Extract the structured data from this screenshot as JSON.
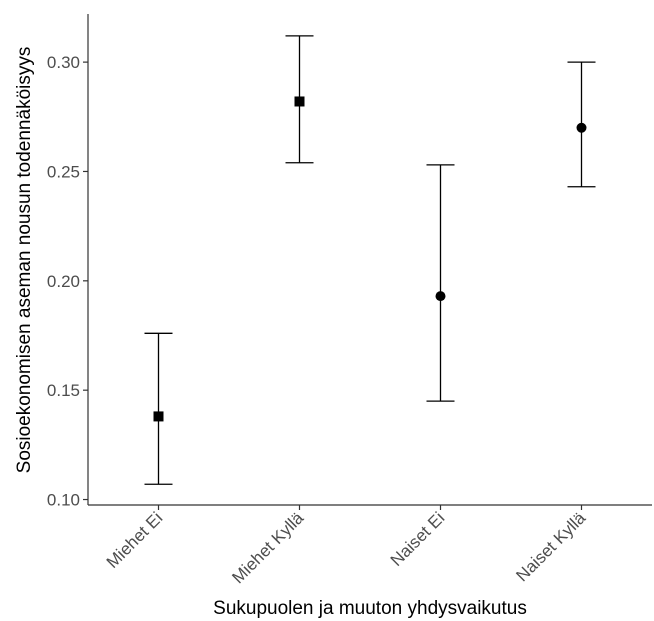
{
  "chart_data": {
    "type": "scatter",
    "title": "",
    "xlabel": "Sukupuolen ja muuton yhdysvaikutus",
    "ylabel": "Sosioekonomisen aseman nousun todennäköisyys",
    "categories": [
      "Miehet Ei",
      "Miehet Kyllä",
      "Naiset Ei",
      "Naiset Kyllä"
    ],
    "points": [
      {
        "category": "Miehet Ei",
        "value": 0.138,
        "lower": 0.107,
        "upper": 0.176,
        "marker": "square"
      },
      {
        "category": "Miehet Kyllä",
        "value": 0.282,
        "lower": 0.254,
        "upper": 0.312,
        "marker": "square"
      },
      {
        "category": "Naiset Ei",
        "value": 0.193,
        "lower": 0.145,
        "upper": 0.253,
        "marker": "circle"
      },
      {
        "category": "Naiset Kyllä",
        "value": 0.27,
        "lower": 0.243,
        "upper": 0.3,
        "marker": "circle"
      }
    ],
    "yticks": [
      "0.10",
      "0.15",
      "0.20",
      "0.25",
      "0.30"
    ],
    "ylim": [
      0.0975,
      0.322
    ],
    "grid": false,
    "legend": "none"
  }
}
